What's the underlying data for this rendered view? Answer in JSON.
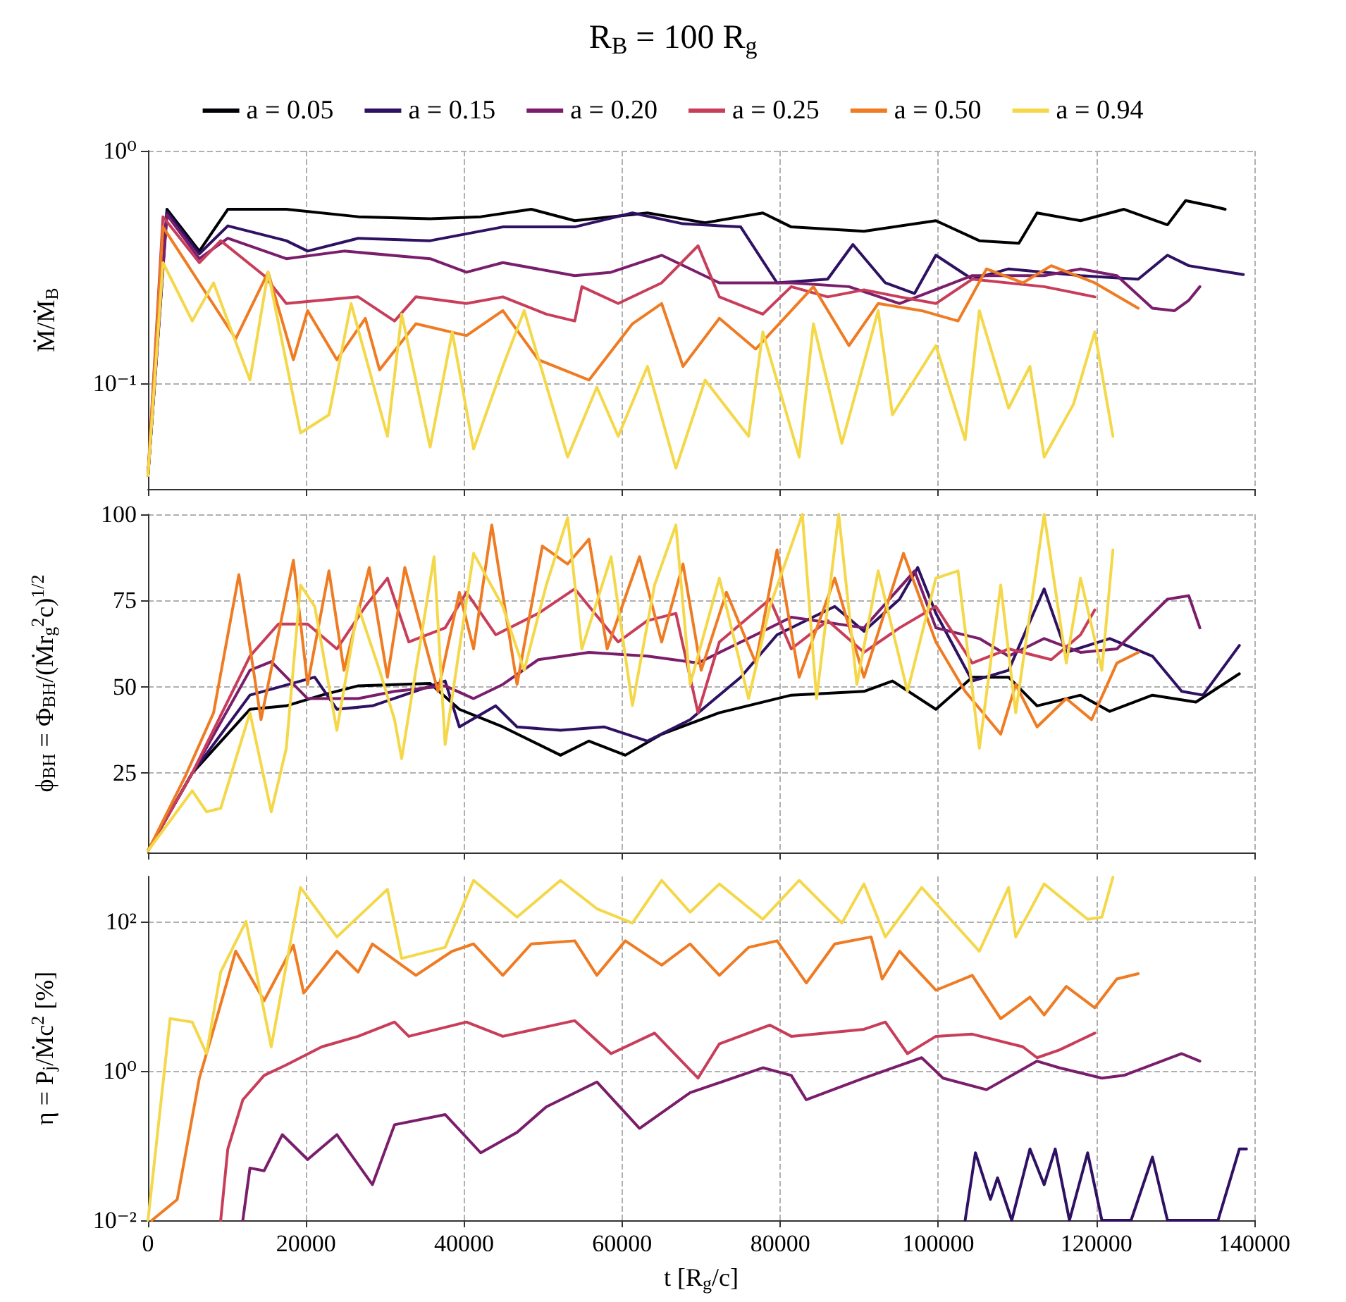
{
  "chart_data": [
    {
      "type": "line",
      "title": "R$_{B}$ = 100 R$_{g}$",
      "ylabel": "Ṁ/Ṁ$_{B}$",
      "legend": "top",
      "grid": true,
      "log": "y",
      "marker": "none",
      "tick_labels": "y",
      "xlim": [
        0,
        140000
      ],
      "xticks": [
        0,
        20000,
        40000,
        60000,
        80000,
        100000,
        120000,
        140000
      ],
      "ylim": [
        0.035,
        1
      ],
      "yticks": [
        {
          "value": 0.1,
          "label": "10⁻¹"
        },
        {
          "value": 1,
          "label": "10⁰"
        }
      ],
      "series": [
        {
          "name": "a = 0.05",
          "color": "#000004",
          "x": [
            0,
            2400,
            6500,
            10100,
            17500,
            26600,
            35700,
            42100,
            48500,
            54000,
            63200,
            70500,
            77800,
            81400,
            90600,
            99700,
            105200,
            110200,
            112500,
            118000,
            123500,
            129000,
            131300,
            134400,
            136300
          ],
          "values": [
            0.04,
            0.56,
            0.37,
            0.56,
            0.56,
            0.52,
            0.51,
            0.52,
            0.56,
            0.5,
            0.54,
            0.49,
            0.54,
            0.47,
            0.45,
            0.5,
            0.41,
            0.4,
            0.54,
            0.5,
            0.56,
            0.48,
            0.61,
            0.58,
            0.56
          ]
        },
        {
          "name": "a = 0.15",
          "color": "#2f1163",
          "x": [
            0,
            2400,
            6500,
            10100,
            17500,
            20200,
            26600,
            35700,
            44900,
            54000,
            61300,
            67700,
            75000,
            79600,
            86000,
            89200,
            93300,
            97000,
            99700,
            104300,
            108900,
            118000,
            125300,
            129000,
            131700,
            138600
          ],
          "values": [
            0.04,
            0.545,
            0.36,
            0.475,
            0.41,
            0.37,
            0.42,
            0.41,
            0.47,
            0.47,
            0.54,
            0.485,
            0.47,
            0.27,
            0.28,
            0.395,
            0.27,
            0.243,
            0.355,
            0.28,
            0.31,
            0.29,
            0.28,
            0.355,
            0.32,
            0.293
          ]
        },
        {
          "name": "a = 0.20",
          "color": "#7a1e6c",
          "x": [
            0,
            2400,
            6500,
            10100,
            17500,
            24800,
            35700,
            40300,
            44900,
            54000,
            58600,
            65000,
            72300,
            81400,
            88700,
            95100,
            104300,
            113400,
            118000,
            122600,
            127100,
            129900,
            131700,
            133100
          ],
          "values": [
            0.04,
            0.53,
            0.343,
            0.42,
            0.343,
            0.37,
            0.343,
            0.3,
            0.33,
            0.29,
            0.3,
            0.355,
            0.27,
            0.27,
            0.26,
            0.22,
            0.29,
            0.29,
            0.31,
            0.29,
            0.21,
            0.205,
            0.227,
            0.26
          ]
        },
        {
          "name": "a = 0.25",
          "color": "#c83e5a",
          "x": [
            0,
            1900,
            6500,
            9200,
            14700,
            17500,
            26600,
            31200,
            33900,
            40300,
            44900,
            50400,
            54000,
            54900,
            59500,
            65000,
            69600,
            72300,
            77800,
            81400,
            86000,
            90600,
            95100,
            99700,
            104300,
            113400,
            119800
          ],
          "values": [
            0.04,
            0.52,
            0.33,
            0.41,
            0.29,
            0.22,
            0.235,
            0.185,
            0.235,
            0.22,
            0.235,
            0.198,
            0.185,
            0.26,
            0.22,
            0.27,
            0.39,
            0.235,
            0.198,
            0.26,
            0.235,
            0.252,
            0.235,
            0.22,
            0.28,
            0.26,
            0.235
          ]
        },
        {
          "name": "a = 0.50",
          "color": "#ef7b22",
          "x": [
            0,
            1900,
            6500,
            11100,
            15200,
            18400,
            20200,
            23900,
            27500,
            29300,
            33900,
            40300,
            44900,
            49400,
            55800,
            61300,
            65000,
            67700,
            72300,
            76900,
            81400,
            84200,
            88700,
            92400,
            97900,
            102500,
            106100,
            110700,
            114300,
            119800,
            125300
          ],
          "values": [
            0.04,
            0.47,
            0.27,
            0.155,
            0.3,
            0.126,
            0.205,
            0.126,
            0.19,
            0.114,
            0.18,
            0.16,
            0.205,
            0.126,
            0.103,
            0.18,
            0.22,
            0.118,
            0.19,
            0.14,
            0.205,
            0.26,
            0.145,
            0.22,
            0.205,
            0.185,
            0.31,
            0.27,
            0.32,
            0.27,
            0.21
          ]
        },
        {
          "name": "a = 0.94",
          "color": "#f4d84a",
          "x": [
            0,
            1900,
            5600,
            8300,
            12900,
            15200,
            19300,
            22900,
            25700,
            30300,
            32100,
            35700,
            38500,
            41200,
            44900,
            47600,
            53100,
            56800,
            59500,
            63200,
            66800,
            70500,
            76000,
            77800,
            82400,
            84200,
            87800,
            92400,
            94200,
            99700,
            103400,
            105200,
            108900,
            111600,
            113400,
            117100,
            119800,
            122100
          ],
          "values": [
            0.04,
            0.33,
            0.185,
            0.27,
            0.103,
            0.3,
            0.061,
            0.073,
            0.22,
            0.059,
            0.198,
            0.053,
            0.166,
            0.052,
            0.118,
            0.205,
            0.048,
            0.096,
            0.059,
            0.118,
            0.043,
            0.103,
            0.059,
            0.166,
            0.048,
            0.18,
            0.055,
            0.205,
            0.073,
            0.145,
            0.057,
            0.205,
            0.078,
            0.118,
            0.048,
            0.081,
            0.166,
            0.059
          ]
        }
      ]
    },
    {
      "type": "line",
      "ylabel": "ϕ$_{BH}$ = Φ$_{BH}$/(Ṁr$_{g}$$^{2}$c)$^{1/2}$",
      "grid": true,
      "marker": "none",
      "tick_labels": "y",
      "xlim": [
        0,
        140000
      ],
      "xticks": [
        0,
        20000,
        40000,
        60000,
        80000,
        100000,
        120000,
        140000
      ],
      "ylim": [
        2,
        100
      ],
      "yticks": [
        25,
        50,
        75,
        100
      ],
      "series": [
        {
          "color": "#000004",
          "x": [
            0,
            5600,
            12900,
            17500,
            22000,
            26600,
            35700,
            39400,
            44900,
            52200,
            55800,
            60400,
            65000,
            72300,
            81400,
            90600,
            94200,
            99700,
            104300,
            108900,
            112500,
            118000,
            121700,
            127100,
            132600,
            138100
          ],
          "values": [
            2.5,
            25,
            43.5,
            44.5,
            47.6,
            50.3,
            51,
            43.5,
            38.4,
            30.2,
            34.3,
            30.2,
            36.3,
            42.5,
            47.6,
            48.7,
            51.7,
            43.5,
            52.8,
            52.8,
            44.5,
            47.6,
            42.9,
            47.6,
            45.6,
            53.8
          ]
        },
        {
          "color": "#2f1163",
          "x": [
            0,
            5600,
            12900,
            21100,
            23900,
            28400,
            37600,
            39400,
            44000,
            46700,
            52200,
            57700,
            63200,
            68600,
            75000,
            79600,
            86900,
            90600,
            95100,
            97400,
            99700,
            104300,
            108900,
            113400,
            116200,
            121700,
            127100,
            130800,
            133500,
            138100
          ],
          "values": [
            2.5,
            25,
            47.6,
            52.8,
            43.5,
            44.5,
            51.7,
            38.4,
            44.5,
            38.4,
            37.4,
            38.4,
            34.3,
            40.5,
            52.8,
            65.1,
            73.3,
            66.1,
            75.4,
            84.6,
            71.3,
            51.7,
            54.8,
            78.4,
            60,
            64,
            58.9,
            48.7,
            47.6,
            62
          ]
        },
        {
          "color": "#7a1e6c",
          "x": [
            0,
            5600,
            12900,
            15600,
            20200,
            26600,
            31200,
            37600,
            41200,
            44900,
            49400,
            55800,
            63200,
            69600,
            76900,
            81400,
            90600,
            97000,
            99700,
            105200,
            108900,
            113400,
            118000,
            122600,
            129000,
            131700,
            133100
          ],
          "values": [
            2.5,
            25,
            54.8,
            57.3,
            46.6,
            46.6,
            48.7,
            50.3,
            46.6,
            50.7,
            57.9,
            60,
            58.9,
            56.9,
            65.1,
            70.2,
            67.1,
            83.6,
            67.1,
            64,
            58.9,
            64,
            60,
            61,
            75.4,
            76.4,
            67.1
          ]
        },
        {
          "color": "#c83e5a",
          "x": [
            0,
            5600,
            12900,
            16500,
            20200,
            23900,
            27500,
            30300,
            33000,
            37600,
            40300,
            44000,
            49400,
            54000,
            59500,
            63200,
            66800,
            69600,
            72300,
            78700,
            81400,
            86000,
            90600,
            95100,
            99700,
            104300,
            108900,
            114300,
            118000,
            119800
          ],
          "values": [
            2.5,
            25,
            58.9,
            68.2,
            68.2,
            61,
            73.3,
            81.5,
            63,
            67.1,
            77.4,
            65.1,
            71.3,
            78.4,
            63,
            69.2,
            71.3,
            42.5,
            63,
            75.4,
            61,
            69.2,
            60,
            67.1,
            73.3,
            56.9,
            61,
            57.9,
            65.1,
            72.3
          ]
        },
        {
          "color": "#ef7b22",
          "x": [
            0,
            4700,
            8300,
            11500,
            14300,
            18400,
            20200,
            22900,
            24800,
            28000,
            30300,
            32500,
            36700,
            39400,
            41200,
            43500,
            46700,
            49900,
            53100,
            55800,
            58100,
            62200,
            65000,
            67700,
            70000,
            73200,
            76900,
            79600,
            82400,
            86900,
            90600,
            95600,
            99700,
            103400,
            107900,
            109800,
            112500,
            116200,
            119400,
            122600,
            125300
          ],
          "values": [
            2.5,
            24,
            42.5,
            82.5,
            40.5,
            86.7,
            50.7,
            83.6,
            54.8,
            84.6,
            52.8,
            84.6,
            48.7,
            77.4,
            61,
            96.9,
            50.7,
            90.8,
            85.6,
            92.8,
            61,
            87.7,
            63,
            85.6,
            54.8,
            77.4,
            56.9,
            89.7,
            52.8,
            81.5,
            52.8,
            88.7,
            63,
            48.7,
            36.3,
            50.7,
            38.4,
            46.6,
            40.5,
            56.9,
            60
          ]
        },
        {
          "color": "#f4d84a",
          "x": [
            0,
            5600,
            7400,
            9200,
            12900,
            15600,
            17500,
            19300,
            21100,
            23900,
            26600,
            29300,
            31200,
            32100,
            36200,
            37600,
            41200,
            44900,
            47600,
            50400,
            53100,
            54900,
            58600,
            61300,
            64100,
            66800,
            68600,
            72300,
            76000,
            78700,
            82800,
            84600,
            87400,
            89700,
            92400,
            96100,
            99700,
            102500,
            105200,
            107900,
            109800,
            113400,
            116200,
            118000,
            120700,
            122100
          ],
          "values": [
            2.5,
            19.9,
            13.8,
            14.8,
            42.5,
            13.8,
            32.2,
            79.5,
            73.3,
            37.4,
            73.3,
            54.8,
            40.5,
            29.2,
            87.7,
            33.3,
            88.7,
            73.3,
            54.8,
            79.5,
            99,
            61,
            87.7,
            44.6,
            79.5,
            96.9,
            50.7,
            81.5,
            46.6,
            73.3,
            100,
            46.6,
            100,
            50.7,
            83.6,
            48.7,
            81.5,
            83.6,
            32.2,
            79.5,
            42.5,
            100,
            56.9,
            81.5,
            54.8,
            89.7
          ]
        }
      ]
    },
    {
      "type": "line",
      "xlabel": "t [R$_{g}$/c]",
      "ylabel": "η = P$_{j}$/Ṁc$^{2}$ [%]",
      "grid": true,
      "log": "y",
      "marker": "none",
      "xlim": [
        0,
        140000
      ],
      "xticks": [
        0,
        20000,
        40000,
        60000,
        80000,
        100000,
        120000,
        140000
      ],
      "ylim": [
        0.01,
        400
      ],
      "yticks": [
        {
          "value": 0.01,
          "label": "10⁻²"
        },
        {
          "value": 1,
          "label": "10⁰"
        },
        {
          "value": 100,
          "label": "10²"
        }
      ],
      "series": [
        {
          "color": "#2f1163",
          "x": [
            103400,
            104700,
            106600,
            107500,
            109300,
            111600,
            113400,
            114800,
            116600,
            118900,
            120700,
            124400,
            127100,
            129000,
            135400,
            138100,
            139000
          ],
          "values": [
            0.01,
            0.08,
            0.019,
            0.037,
            0.01,
            0.09,
            0.03,
            0.09,
            0.01,
            0.08,
            0.01,
            0.01,
            0.07,
            0.01,
            0.01,
            0.09,
            0.09
          ]
        },
        {
          "color": "#7a1e6c",
          "x": [
            12000,
            12900,
            14700,
            17000,
            20200,
            23900,
            28400,
            31200,
            37600,
            42100,
            46700,
            50400,
            56800,
            62200,
            68600,
            77800,
            81400,
            83300,
            90600,
            97900,
            100600,
            106100,
            112500,
            115300,
            120700,
            123500,
            130800,
            133100
          ],
          "values": [
            0.01,
            0.05,
            0.046,
            0.14,
            0.065,
            0.14,
            0.03,
            0.19,
            0.26,
            0.08,
            0.15,
            0.33,
            0.71,
            0.17,
            0.51,
            1.1,
            0.87,
            0.41,
            0.8,
            1.5,
            0.8,
            0.56,
            1.35,
            1.1,
            0.8,
            0.87,
            1.7,
            1.35
          ]
        },
        {
          "color": "#c83e5a",
          "x": [
            9200,
            10100,
            12000,
            14700,
            17500,
            22000,
            26600,
            31200,
            33000,
            40300,
            44900,
            54000,
            58600,
            64100,
            69600,
            72300,
            78700,
            81400,
            90600,
            93300,
            96100,
            99700,
            104300,
            110700,
            112500,
            115300,
            119800
          ],
          "values": [
            0.01,
            0.09,
            0.41,
            0.87,
            1.2,
            2.1,
            2.9,
            4.5,
            2.9,
            4.5,
            2.9,
            4.7,
            1.7,
            3.2,
            0.8,
            2.3,
            4.1,
            2.9,
            3.6,
            4.5,
            1.7,
            2.9,
            3.1,
            2.1,
            1.5,
            1.9,
            3.2
          ]
        },
        {
          "color": "#ef7b22",
          "x": [
            500,
            3700,
            6500,
            8300,
            11100,
            14700,
            18400,
            19700,
            23900,
            26600,
            28400,
            33900,
            38500,
            41200,
            44900,
            48500,
            54000,
            56800,
            60400,
            65000,
            68600,
            72300,
            76000,
            79600,
            83300,
            86900,
            91500,
            92900,
            95100,
            99700,
            104300,
            107900,
            111600,
            113400,
            116200,
            119800,
            122600,
            125300
          ],
          "values": [
            0.01,
            0.019,
            0.8,
            3.6,
            40,
            8.7,
            48,
            11,
            40,
            21,
            50,
            19,
            40,
            50,
            19,
            50,
            55,
            19,
            55,
            26,
            50,
            19,
            45,
            55,
            15,
            50,
            62,
            17,
            40,
            12,
            19,
            5,
            9.7,
            5.6,
            13.5,
            7,
            17,
            20
          ]
        },
        {
          "color": "#f4d84a",
          "x": [
            0,
            2800,
            5600,
            7400,
            9200,
            12400,
            15600,
            19300,
            23900,
            30300,
            32100,
            37600,
            41200,
            46700,
            52200,
            56800,
            61300,
            65000,
            68600,
            72300,
            77800,
            82400,
            87800,
            90600,
            93300,
            97900,
            105200,
            108900,
            109800,
            113400,
            118900,
            120700,
            122100
          ],
          "values": [
            0.01,
            5,
            4.5,
            1.7,
            21,
            100,
            2.1,
            285,
            62,
            269,
            32,
            45,
            355,
            114,
            355,
            148,
            95,
            355,
            133,
            318,
            107,
            355,
            95,
            318,
            62,
            285,
            40,
            285,
            62,
            318,
            107,
            114,
            390
          ]
        }
      ]
    }
  ]
}
